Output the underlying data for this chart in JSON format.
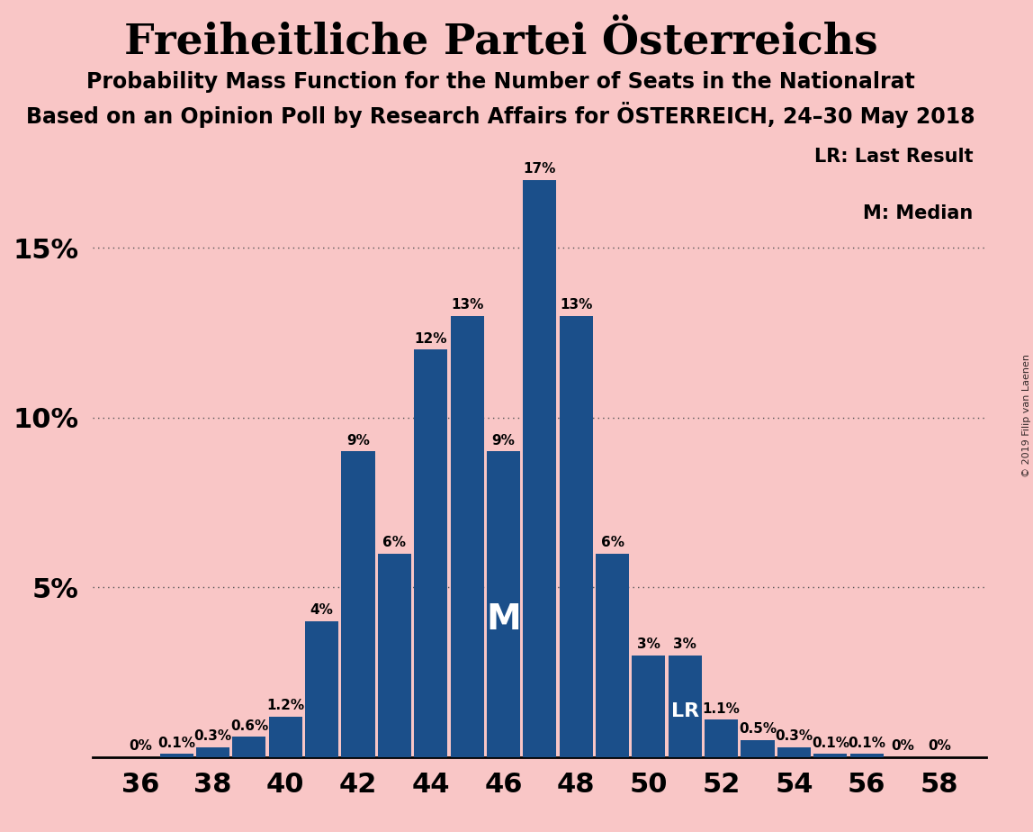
{
  "title": "Freiheitliche Partei Österreichs",
  "subtitle1": "Probability Mass Function for the Number of Seats in the Nationalrat",
  "subtitle2": "Based on an Opinion Poll by Research Affairs for ÖSTERREICH, 24–30 May 2018",
  "legend_lr": "LR: Last Result",
  "legend_m": "M: Median",
  "copyright": "© 2019 Filip van Laenen",
  "seats": [
    36,
    37,
    38,
    39,
    40,
    41,
    42,
    43,
    44,
    45,
    46,
    47,
    48,
    49,
    50,
    51,
    52,
    53,
    54,
    55,
    56,
    57,
    58
  ],
  "probs": [
    0.0,
    0.1,
    0.3,
    0.6,
    1.2,
    4.0,
    9.0,
    6.0,
    12.0,
    13.0,
    9.0,
    17.0,
    13.0,
    6.0,
    3.0,
    3.0,
    1.1,
    0.5,
    0.3,
    0.1,
    0.1,
    0.0,
    0.0
  ],
  "bar_color": "#1b4f8a",
  "background_color": "#f9c6c6",
  "median_seat": 46,
  "lr_seat": 51,
  "ylim_max": 18.5,
  "yticks": [
    5,
    10,
    15
  ],
  "ytick_labels": [
    "5%",
    "10%",
    "15%"
  ],
  "title_fontsize": 34,
  "subtitle_fontsize": 17,
  "bar_label_fontsize": 11,
  "tick_fontsize": 22
}
